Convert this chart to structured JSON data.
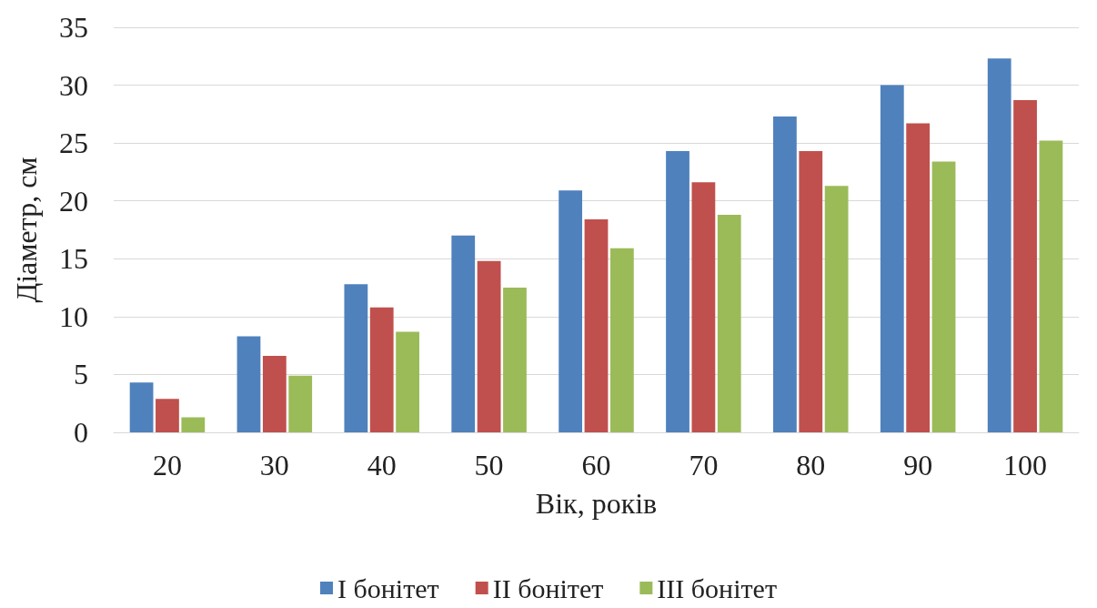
{
  "chart_data": {
    "type": "bar",
    "xlabel": "Вік, років",
    "ylabel": "Діаметр, см",
    "categories": [
      "20",
      "30",
      "40",
      "50",
      "60",
      "70",
      "80",
      "90",
      "100"
    ],
    "series": [
      {
        "name": "I бонітет",
        "color": "#4f81bd",
        "values": [
          4.3,
          8.3,
          12.8,
          17.0,
          20.9,
          24.3,
          27.3,
          30.0,
          32.3
        ]
      },
      {
        "name": "II бонітет",
        "color": "#c0504d",
        "values": [
          2.9,
          6.6,
          10.8,
          14.8,
          18.4,
          21.6,
          24.3,
          26.7,
          28.7
        ]
      },
      {
        "name": "III бонітет",
        "color": "#9bbb59",
        "values": [
          1.3,
          4.9,
          8.7,
          12.5,
          15.9,
          18.8,
          21.3,
          23.4,
          25.2
        ]
      }
    ],
    "ylim": [
      0,
      35
    ],
    "yticks": [
      0,
      5,
      10,
      15,
      20,
      25,
      30,
      35
    ],
    "grid": "y",
    "legend": "bottom"
  }
}
